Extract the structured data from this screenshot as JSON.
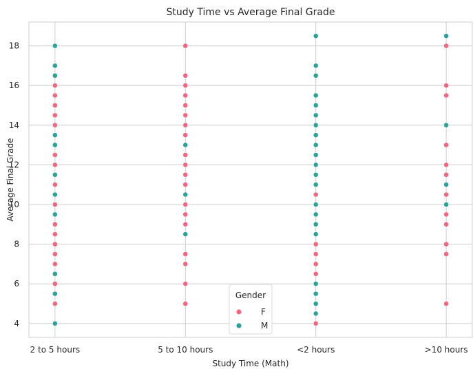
{
  "chart_data": {
    "type": "scatter",
    "title": "Study Time vs Average Final Grade",
    "xlabel": "Study Time (Math)",
    "ylabel": "Average Final Grade",
    "categories": [
      "2 to 5 hours",
      "5 to 10 hours",
      "<2 hours",
      ">10 hours"
    ],
    "yticks": [
      4,
      6,
      8,
      10,
      12,
      14,
      16,
      18
    ],
    "ylim": [
      3.3,
      19.2
    ],
    "grid": true,
    "legend": {
      "title": "Gender",
      "placement": "bottom-center"
    },
    "series": [
      {
        "name": "F",
        "color": "#f2667f",
        "points": [
          {
            "x": "2 to 5 hours",
            "y": 5.0
          },
          {
            "x": "2 to 5 hours",
            "y": 6.0
          },
          {
            "x": "2 to 5 hours",
            "y": 7.0
          },
          {
            "x": "2 to 5 hours",
            "y": 7.5
          },
          {
            "x": "2 to 5 hours",
            "y": 8.0
          },
          {
            "x": "2 to 5 hours",
            "y": 8.5
          },
          {
            "x": "2 to 5 hours",
            "y": 9.0
          },
          {
            "x": "2 to 5 hours",
            "y": 10.0
          },
          {
            "x": "2 to 5 hours",
            "y": 11.0
          },
          {
            "x": "2 to 5 hours",
            "y": 12.0
          },
          {
            "x": "2 to 5 hours",
            "y": 12.5
          },
          {
            "x": "2 to 5 hours",
            "y": 14.0
          },
          {
            "x": "2 to 5 hours",
            "y": 14.5
          },
          {
            "x": "2 to 5 hours",
            "y": 15.0
          },
          {
            "x": "2 to 5 hours",
            "y": 15.5
          },
          {
            "x": "2 to 5 hours",
            "y": 16.0
          },
          {
            "x": "5 to 10 hours",
            "y": 5.0
          },
          {
            "x": "5 to 10 hours",
            "y": 6.0
          },
          {
            "x": "5 to 10 hours",
            "y": 7.0
          },
          {
            "x": "5 to 10 hours",
            "y": 7.5
          },
          {
            "x": "5 to 10 hours",
            "y": 9.0
          },
          {
            "x": "5 to 10 hours",
            "y": 9.5
          },
          {
            "x": "5 to 10 hours",
            "y": 10.0
          },
          {
            "x": "5 to 10 hours",
            "y": 11.0
          },
          {
            "x": "5 to 10 hours",
            "y": 11.5
          },
          {
            "x": "5 to 10 hours",
            "y": 12.0
          },
          {
            "x": "5 to 10 hours",
            "y": 12.5
          },
          {
            "x": "5 to 10 hours",
            "y": 13.5
          },
          {
            "x": "5 to 10 hours",
            "y": 14.0
          },
          {
            "x": "5 to 10 hours",
            "y": 14.5
          },
          {
            "x": "5 to 10 hours",
            "y": 15.0
          },
          {
            "x": "5 to 10 hours",
            "y": 15.5
          },
          {
            "x": "5 to 10 hours",
            "y": 16.0
          },
          {
            "x": "5 to 10 hours",
            "y": 16.5
          },
          {
            "x": "5 to 10 hours",
            "y": 18.0
          },
          {
            "x": "<2 hours",
            "y": 4.0
          },
          {
            "x": "<2 hours",
            "y": 6.5
          },
          {
            "x": "<2 hours",
            "y": 7.0
          },
          {
            "x": "<2 hours",
            "y": 7.5
          },
          {
            "x": "<2 hours",
            "y": 8.0
          },
          {
            "x": "<2 hours",
            "y": 10.5
          },
          {
            "x": ">10 hours",
            "y": 5.0
          },
          {
            "x": ">10 hours",
            "y": 7.5
          },
          {
            "x": ">10 hours",
            "y": 8.0
          },
          {
            "x": ">10 hours",
            "y": 9.0
          },
          {
            "x": ">10 hours",
            "y": 9.5
          },
          {
            "x": ">10 hours",
            "y": 10.5
          },
          {
            "x": ">10 hours",
            "y": 11.5
          },
          {
            "x": ">10 hours",
            "y": 12.0
          },
          {
            "x": ">10 hours",
            "y": 13.0
          },
          {
            "x": ">10 hours",
            "y": 15.5
          },
          {
            "x": ">10 hours",
            "y": 16.0
          },
          {
            "x": ">10 hours",
            "y": 18.0
          }
        ]
      },
      {
        "name": "M",
        "color": "#2ba39a",
        "points": [
          {
            "x": "2 to 5 hours",
            "y": 4.0
          },
          {
            "x": "2 to 5 hours",
            "y": 5.5
          },
          {
            "x": "2 to 5 hours",
            "y": 6.5
          },
          {
            "x": "2 to 5 hours",
            "y": 9.5
          },
          {
            "x": "2 to 5 hours",
            "y": 10.5
          },
          {
            "x": "2 to 5 hours",
            "y": 11.5
          },
          {
            "x": "2 to 5 hours",
            "y": 13.0
          },
          {
            "x": "2 to 5 hours",
            "y": 13.5
          },
          {
            "x": "2 to 5 hours",
            "y": 16.5
          },
          {
            "x": "2 to 5 hours",
            "y": 17.0
          },
          {
            "x": "2 to 5 hours",
            "y": 18.0
          },
          {
            "x": "5 to 10 hours",
            "y": 8.5
          },
          {
            "x": "5 to 10 hours",
            "y": 10.5
          },
          {
            "x": "5 to 10 hours",
            "y": 13.0
          },
          {
            "x": "<2 hours",
            "y": 4.5
          },
          {
            "x": "<2 hours",
            "y": 5.0
          },
          {
            "x": "<2 hours",
            "y": 5.5
          },
          {
            "x": "<2 hours",
            "y": 6.0
          },
          {
            "x": "<2 hours",
            "y": 8.5
          },
          {
            "x": "<2 hours",
            "y": 9.0
          },
          {
            "x": "<2 hours",
            "y": 9.5
          },
          {
            "x": "<2 hours",
            "y": 10.0
          },
          {
            "x": "<2 hours",
            "y": 11.0
          },
          {
            "x": "<2 hours",
            "y": 11.5
          },
          {
            "x": "<2 hours",
            "y": 12.0
          },
          {
            "x": "<2 hours",
            "y": 12.5
          },
          {
            "x": "<2 hours",
            "y": 13.0
          },
          {
            "x": "<2 hours",
            "y": 13.5
          },
          {
            "x": "<2 hours",
            "y": 14.0
          },
          {
            "x": "<2 hours",
            "y": 14.5
          },
          {
            "x": "<2 hours",
            "y": 15.0
          },
          {
            "x": "<2 hours",
            "y": 15.5
          },
          {
            "x": "<2 hours",
            "y": 16.5
          },
          {
            "x": "<2 hours",
            "y": 17.0
          },
          {
            "x": "<2 hours",
            "y": 18.5
          },
          {
            "x": ">10 hours",
            "y": 10.0
          },
          {
            "x": ">10 hours",
            "y": 11.0
          },
          {
            "x": ">10 hours",
            "y": 14.0
          },
          {
            "x": ">10 hours",
            "y": 18.5
          }
        ]
      }
    ]
  }
}
